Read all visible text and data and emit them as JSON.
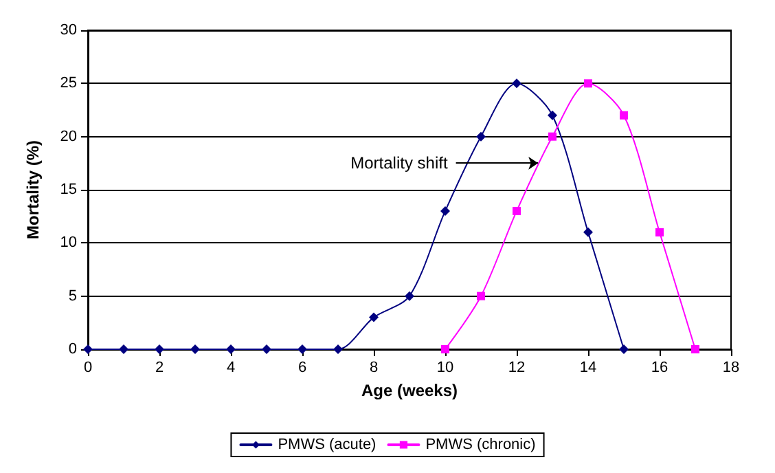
{
  "chart_data": {
    "type": "line",
    "xlabel": "Age (weeks)",
    "ylabel": "Mortality (%)",
    "xlim": [
      0,
      18
    ],
    "xticks": [
      0,
      2,
      4,
      6,
      8,
      10,
      12,
      14,
      16,
      18
    ],
    "ylim": [
      0,
      30
    ],
    "yticks": [
      0,
      5,
      10,
      15,
      20,
      25,
      30
    ],
    "grid": "y",
    "legend": "bottom",
    "line_style": "solid",
    "annotations": [
      {
        "text": "Mortality shift",
        "x": 12.6,
        "y": 17.5
      }
    ],
    "series": [
      {
        "name": "PMWS (acute)",
        "color": "#000080",
        "marker": "diamond",
        "x": [
          0,
          1,
          2,
          3,
          4,
          5,
          6,
          7,
          8,
          9,
          10,
          11,
          12,
          13,
          14,
          15
        ],
        "values": [
          0,
          0,
          0,
          0,
          0,
          0,
          0,
          0,
          3,
          5,
          13,
          20,
          25,
          22,
          11,
          0
        ]
      },
      {
        "name": "PMWS (chronic)",
        "color": "#ff00ff",
        "marker": "square",
        "x": [
          10,
          11,
          12,
          13,
          14,
          15,
          16,
          17
        ],
        "values": [
          0,
          5,
          13,
          20,
          25,
          22,
          11,
          0
        ]
      }
    ]
  }
}
